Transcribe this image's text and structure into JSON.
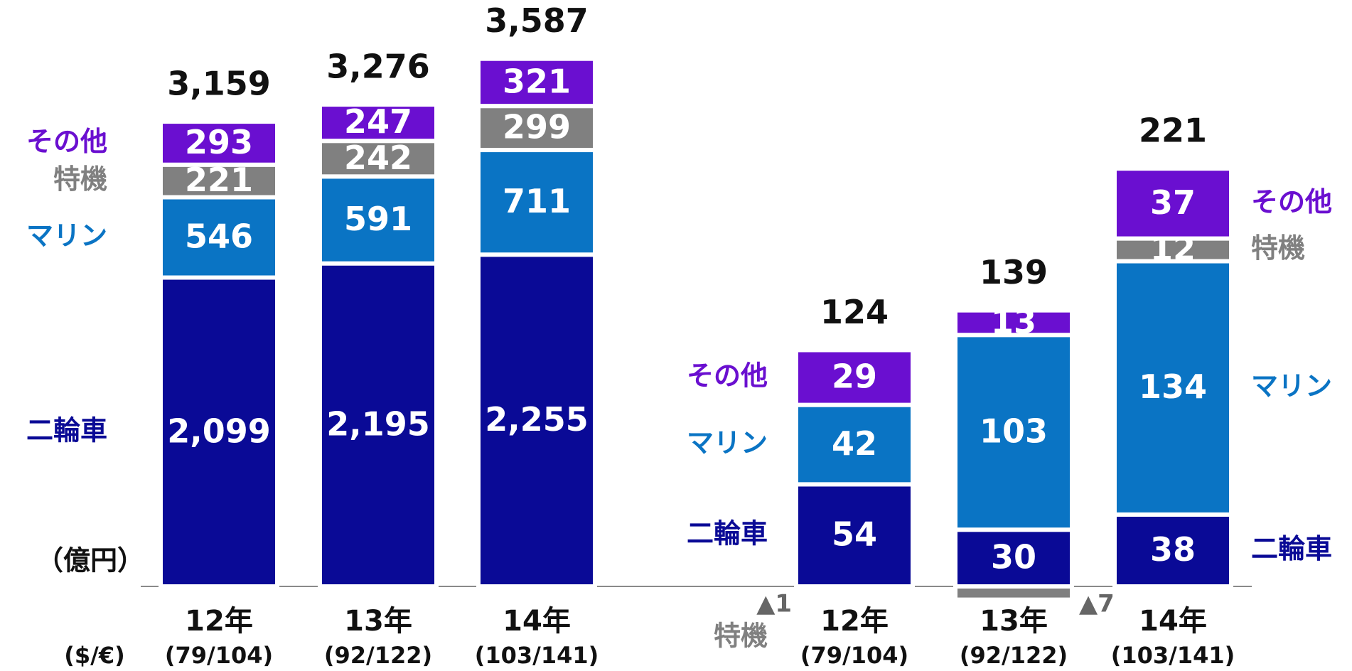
{
  "chart_data": [
    {
      "type": "bar",
      "stacked": true,
      "unit": "（億円）",
      "x_note": "($/€)",
      "categories": [
        "12年",
        "13年",
        "14年"
      ],
      "subcategories": [
        "(79/104)",
        "(92/122)",
        "(103/141)"
      ],
      "series": [
        {
          "name": "二輪車",
          "color": "#0a0a96",
          "values": [
            2099,
            2195,
            2255
          ],
          "value_labels": [
            "2,099",
            "2,195",
            "2,255"
          ]
        },
        {
          "name": "マリン",
          "color": "#0a74c4",
          "values": [
            546,
            591,
            711
          ]
        },
        {
          "name": "特機",
          "color": "#808080",
          "values": [
            221,
            242,
            299
          ]
        },
        {
          "name": "その他",
          "color": "#6a0fd0",
          "values": [
            293,
            247,
            321
          ]
        }
      ],
      "totals": [
        3159,
        3276,
        3587
      ],
      "total_labels": [
        "3,159",
        "3,276",
        "3,587"
      ]
    },
    {
      "type": "bar",
      "stacked": true,
      "categories": [
        "12年",
        "13年",
        "14年"
      ],
      "subcategories": [
        "(79/104)",
        "(92/122)",
        "(103/141)"
      ],
      "series": [
        {
          "name": "二輪車",
          "color": "#0a0a96",
          "values": [
            54,
            30,
            38
          ]
        },
        {
          "name": "マリン",
          "color": "#0a74c4",
          "values": [
            42,
            103,
            134
          ]
        },
        {
          "name": "特機",
          "color": "#808080",
          "values": [
            -1,
            -7,
            12
          ],
          "value_labels": [
            "▲1",
            "▲7",
            "12"
          ]
        },
        {
          "name": "その他",
          "color": "#6a0fd0",
          "values": [
            29,
            13,
            37
          ]
        }
      ],
      "totals": [
        124,
        139,
        221
      ]
    }
  ]
}
